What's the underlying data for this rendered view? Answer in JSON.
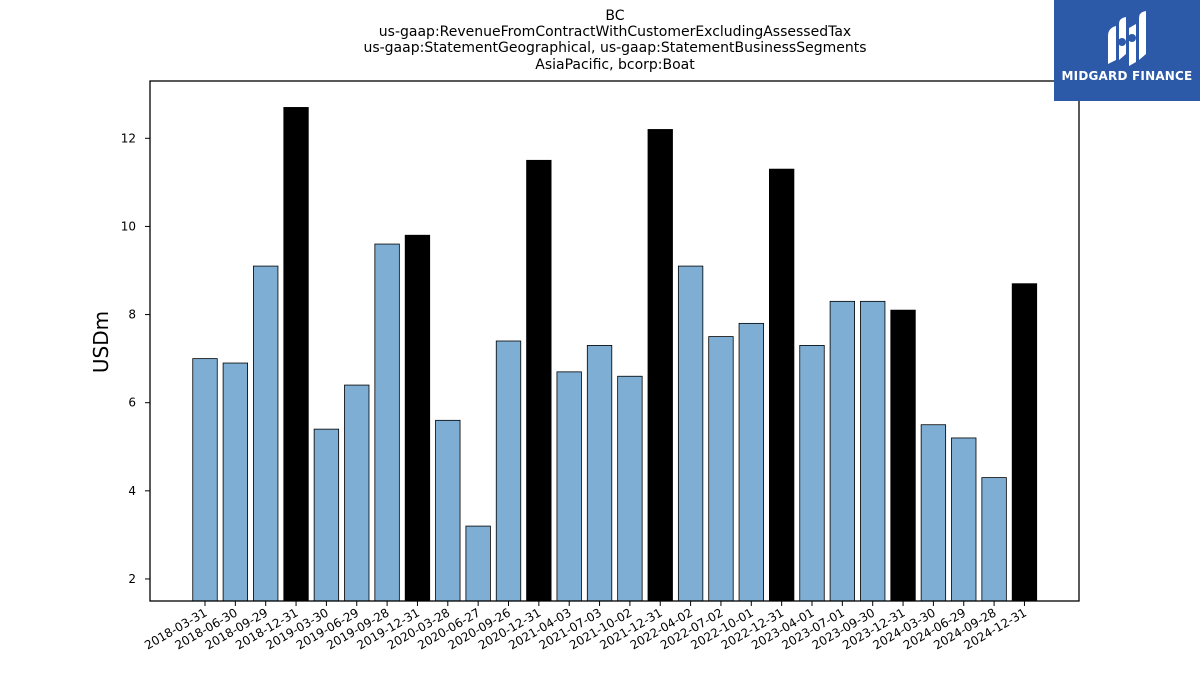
{
  "chart_data": {
    "type": "bar",
    "title_lines": [
      "BC",
      "us-gaap:RevenueFromContractWithCustomerExcludingAssessedTax",
      "us-gaap:StatementGeographical, us-gaap:StatementBusinessSegments",
      "AsiaPacific, bcorp:Boat"
    ],
    "ylabel": "USDm",
    "xlabel": "",
    "ylim": [
      1.5,
      13.3
    ],
    "yticks": [
      2,
      4,
      6,
      8,
      10,
      12
    ],
    "categories": [
      "2018-03-31",
      "2018-06-30",
      "2018-09-29",
      "2018-12-31",
      "2019-03-30",
      "2019-06-29",
      "2019-09-28",
      "2019-12-31",
      "2020-03-28",
      "2020-06-27",
      "2020-09-26",
      "2020-12-31",
      "2021-04-03",
      "2021-07-03",
      "2021-10-02",
      "2021-12-31",
      "2022-04-02",
      "2022-07-02",
      "2022-10-01",
      "2022-12-31",
      "2023-04-01",
      "2023-07-01",
      "2023-09-30",
      "2023-12-31",
      "2024-03-30",
      "2024-06-29",
      "2024-09-28",
      "2024-12-31"
    ],
    "values": [
      7.0,
      6.9,
      9.1,
      12.7,
      5.4,
      6.4,
      9.6,
      9.8,
      5.6,
      3.2,
      7.4,
      11.5,
      6.7,
      7.3,
      6.6,
      12.2,
      9.1,
      7.5,
      7.8,
      11.3,
      7.3,
      8.3,
      8.3,
      8.1,
      5.5,
      5.2,
      4.3,
      8.7
    ],
    "highlight": [
      false,
      false,
      false,
      true,
      false,
      false,
      false,
      true,
      false,
      false,
      false,
      true,
      false,
      false,
      false,
      true,
      false,
      false,
      false,
      true,
      false,
      false,
      false,
      true,
      false,
      false,
      false,
      true
    ],
    "colors": {
      "bar": "#7eaed3",
      "highlight": "#000000",
      "edge": "#000000"
    },
    "grid": false
  },
  "logo": {
    "text": "MIDGARD FINANCE",
    "background": "#2c5aa8"
  }
}
